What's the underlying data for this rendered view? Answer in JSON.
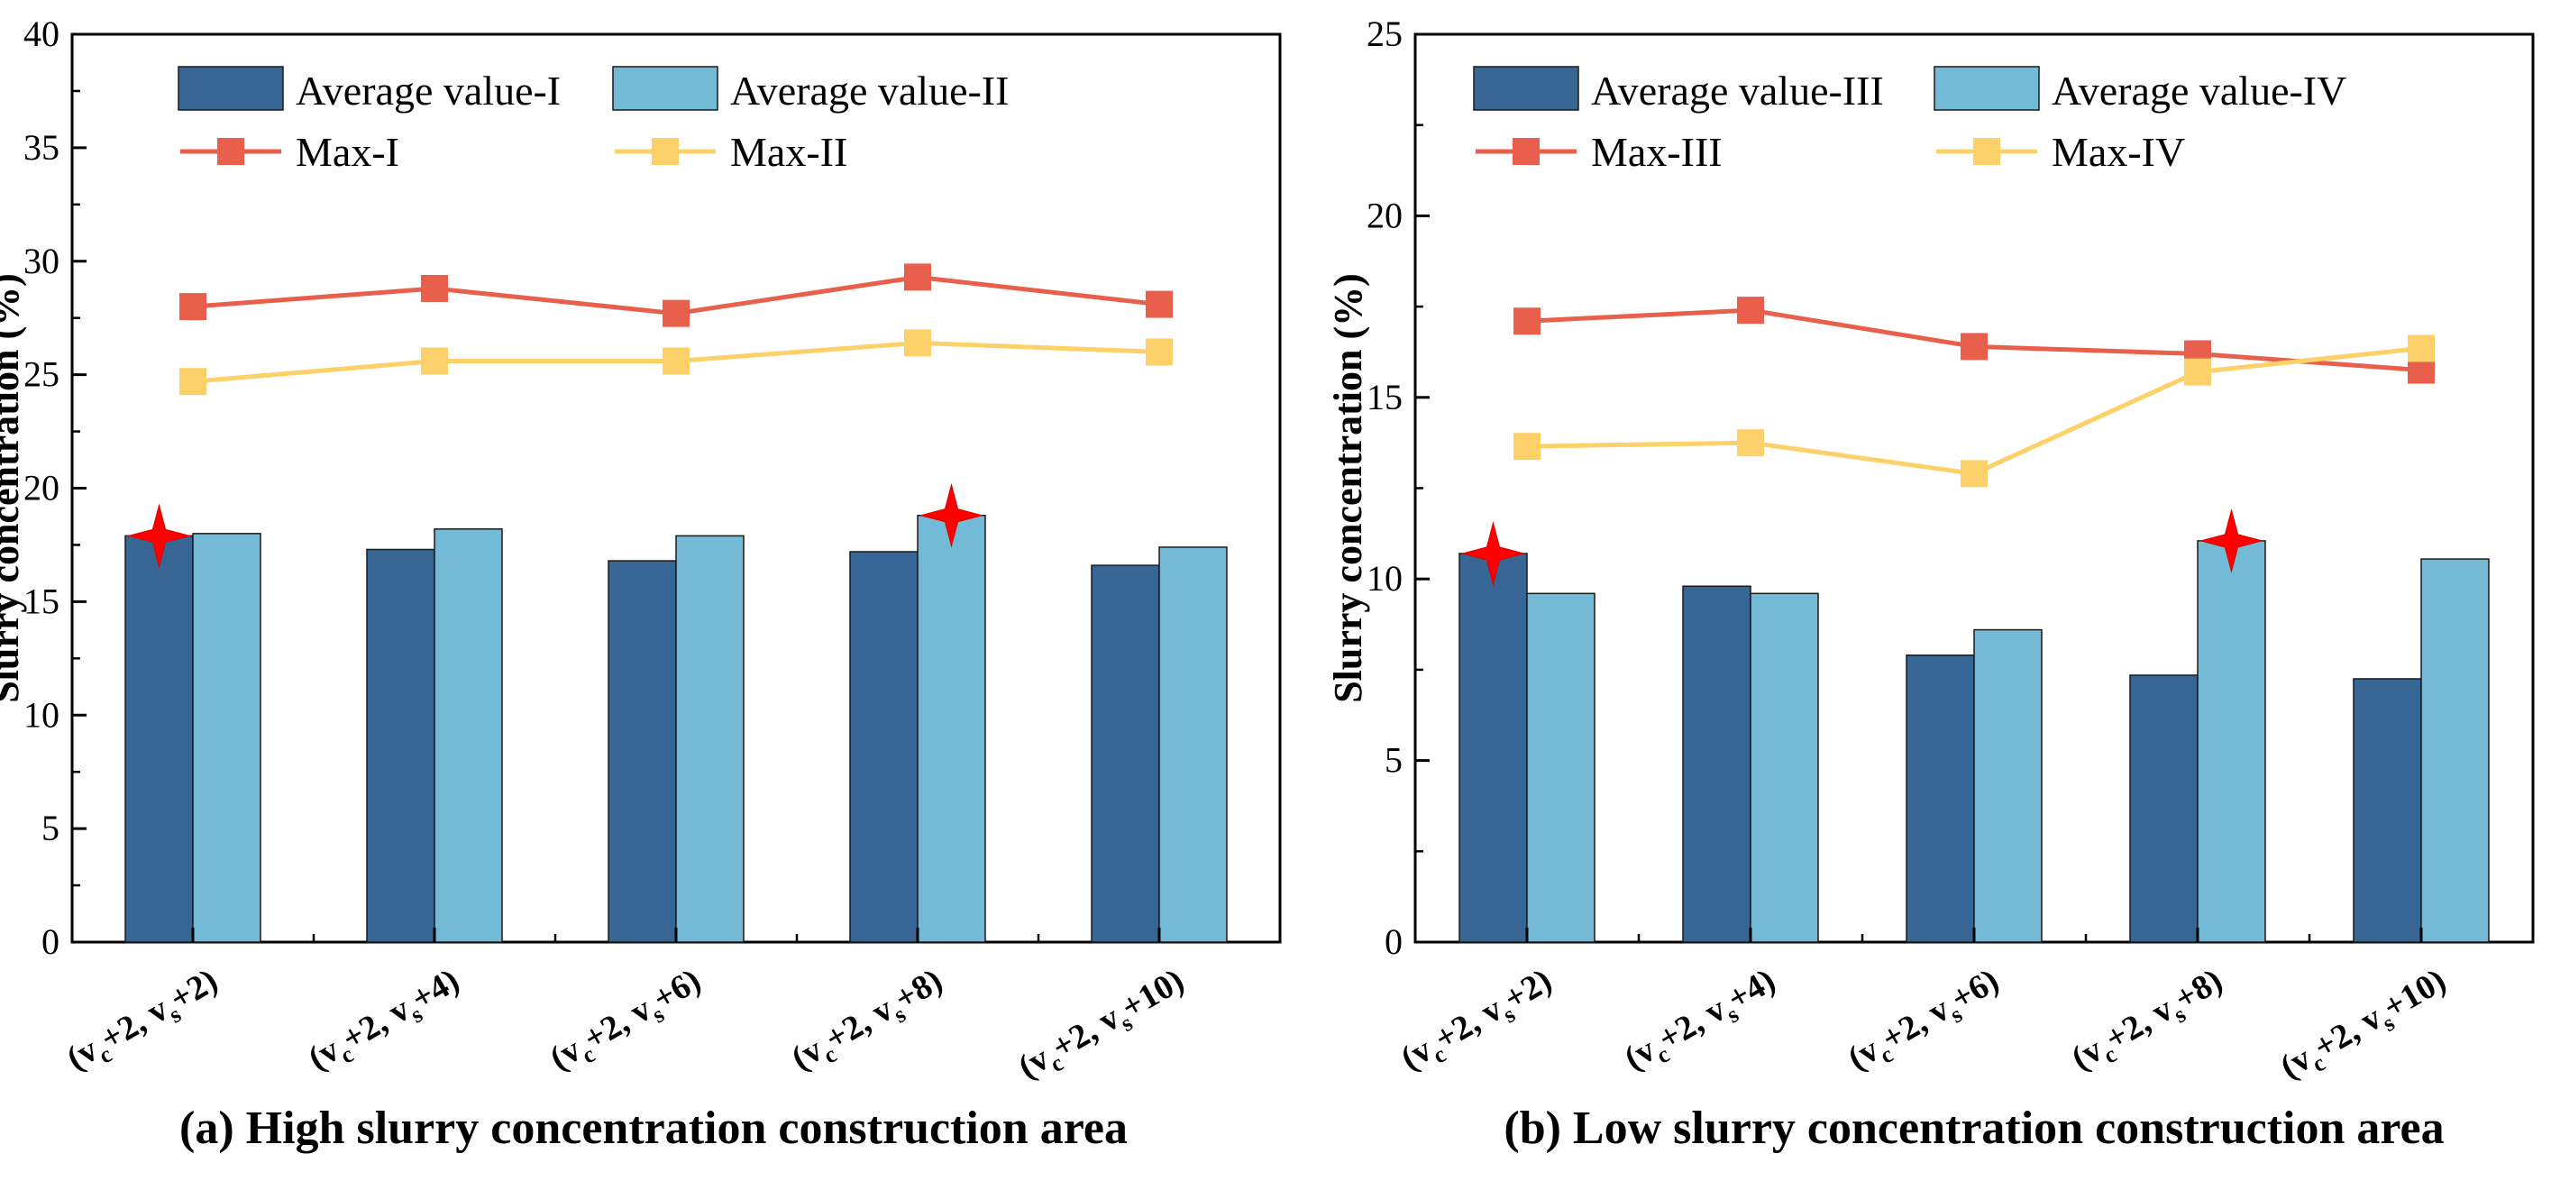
{
  "chart_data": [
    {
      "type": "bar+line",
      "caption": "(a) High slurry concentration construction area",
      "ylabel": "Slurry concentration (%)",
      "xlabel": "",
      "ylim": [
        0,
        40
      ],
      "yticks": [
        0,
        5,
        10,
        15,
        20,
        25,
        30,
        35,
        40
      ],
      "categories": [
        {
          "pre": "(v",
          "s1": "c",
          "mid": "+2,  v",
          "s2": "s",
          "post": "+2)"
        },
        {
          "pre": "(v",
          "s1": "c",
          "mid": "+2,  v",
          "s2": "s",
          "post": "+4)"
        },
        {
          "pre": "(v",
          "s1": "c",
          "mid": "+2,  v",
          "s2": "s",
          "post": "+6)"
        },
        {
          "pre": "(v",
          "s1": "c",
          "mid": "+2,  v",
          "s2": "s",
          "post": "+8)"
        },
        {
          "pre": "(v",
          "s1": "c",
          "mid": "+2,  v",
          "s2": "s",
          "post": "+10)"
        }
      ],
      "bar_series": [
        {
          "name": "Average value-I",
          "color": "#376694",
          "values": [
            17.9,
            17.3,
            16.8,
            17.2,
            16.6
          ]
        },
        {
          "name": "Average value-II",
          "color": "#73BAD6",
          "values": [
            18.0,
            18.2,
            17.9,
            18.8,
            17.4
          ]
        }
      ],
      "line_series": [
        {
          "name": "Max-I",
          "color": "#E8604C",
          "values": [
            28.0,
            28.8,
            27.7,
            29.3,
            28.1
          ]
        },
        {
          "name": "Max-II",
          "color": "#FDD169",
          "values": [
            24.7,
            25.6,
            25.6,
            26.4,
            26.0
          ]
        }
      ],
      "stars": [
        {
          "series": "Average value-I",
          "category_index": 0,
          "value": 17.9
        },
        {
          "series": "Average value-II",
          "category_index": 3,
          "value": 18.8
        }
      ]
    },
    {
      "type": "bar+line",
      "caption": "(b) Low slurry concentration construction area",
      "ylabel": "Slurry concentration (%)",
      "xlabel": "",
      "ylim": [
        0,
        25
      ],
      "yticks": [
        0,
        5,
        10,
        15,
        20,
        25
      ],
      "categories": [
        {
          "pre": "(v",
          "s1": "c",
          "mid": "+2,  v",
          "s2": "s",
          "post": "+2)"
        },
        {
          "pre": "(v",
          "s1": "c",
          "mid": "+2,  v",
          "s2": "s",
          "post": "+4)"
        },
        {
          "pre": "(v",
          "s1": "c",
          "mid": "+2,  v",
          "s2": "s",
          "post": "+6)"
        },
        {
          "pre": "(v",
          "s1": "c",
          "mid": "+2,  v",
          "s2": "s",
          "post": "+8)"
        },
        {
          "pre": "(v",
          "s1": "c",
          "mid": "+2,  v",
          "s2": "s",
          "post": "+10)"
        }
      ],
      "bar_series": [
        {
          "name": "Average value-III",
          "color": "#376694",
          "values": [
            10.7,
            9.8,
            7.9,
            7.35,
            7.25
          ]
        },
        {
          "name": "Average value-IV",
          "color": "#73BAD6",
          "values": [
            9.6,
            9.6,
            8.6,
            11.05,
            10.55
          ]
        }
      ],
      "line_series": [
        {
          "name": "Max-III",
          "color": "#E8604C",
          "values": [
            17.1,
            17.4,
            16.4,
            16.2,
            15.75
          ]
        },
        {
          "name": "Max-IV",
          "color": "#FDD169",
          "values": [
            13.65,
            13.75,
            12.9,
            15.7,
            16.35
          ]
        }
      ],
      "stars": [
        {
          "series": "Average value-III",
          "category_index": 0,
          "value": 10.7
        },
        {
          "series": "Average value-IV",
          "category_index": 3,
          "value": 11.05
        }
      ]
    }
  ]
}
